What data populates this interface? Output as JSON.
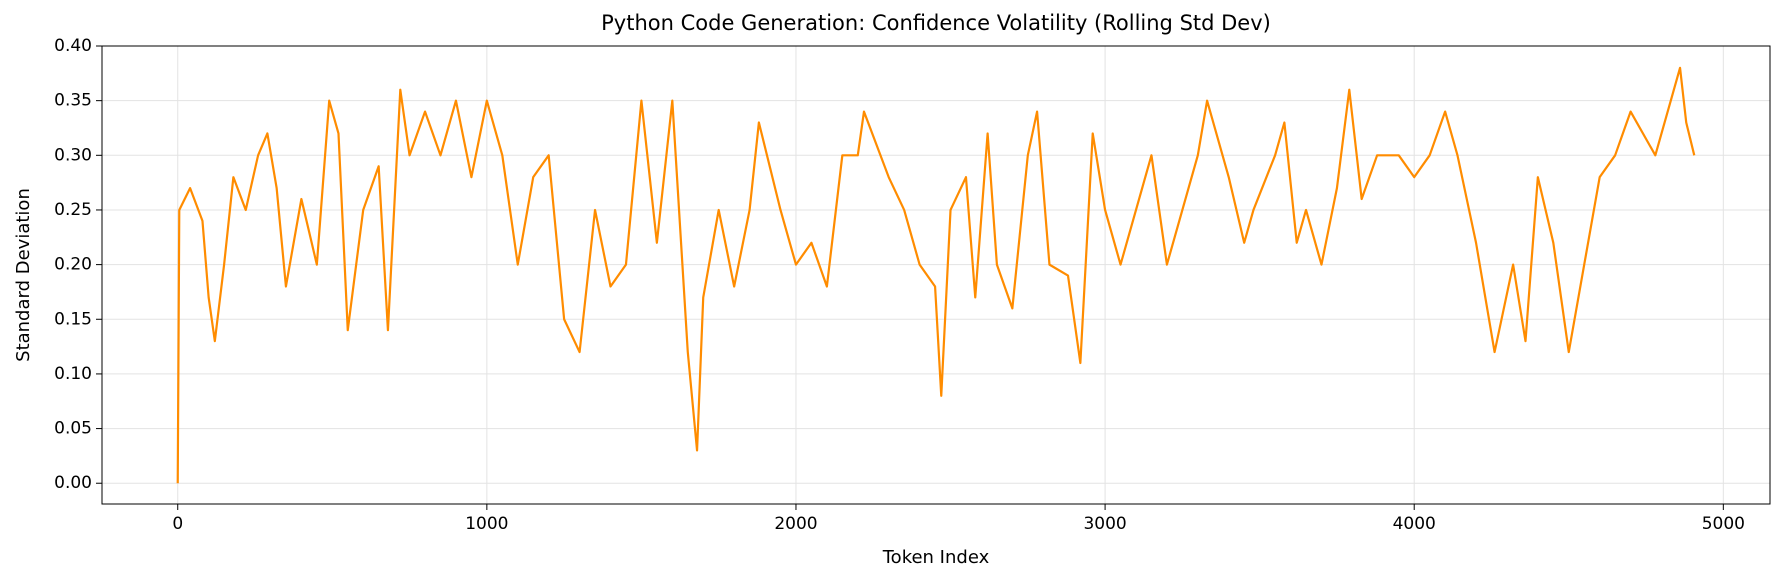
{
  "chart_data": {
    "type": "line",
    "title": "Python Code Generation: Confidence Volatility (Rolling Std Dev)",
    "x_label": "Token Index",
    "y_label": "Standard Deviation",
    "x": [
      0,
      5,
      40,
      80,
      100,
      120,
      150,
      180,
      220,
      260,
      290,
      320,
      350,
      400,
      450,
      490,
      520,
      550,
      600,
      650,
      680,
      720,
      750,
      800,
      850,
      900,
      950,
      1000,
      1050,
      1100,
      1150,
      1200,
      1250,
      1300,
      1350,
      1400,
      1450,
      1500,
      1550,
      1600,
      1650,
      1680,
      1700,
      1750,
      1800,
      1850,
      1880,
      1950,
      2000,
      2050,
      2100,
      2150,
      2200,
      2220,
      2300,
      2350,
      2400,
      2450,
      2470,
      2500,
      2550,
      2580,
      2620,
      2650,
      2700,
      2750,
      2780,
      2820,
      2880,
      2920,
      2960,
      3000,
      3050,
      3100,
      3150,
      3200,
      3250,
      3300,
      3330,
      3400,
      3450,
      3480,
      3550,
      3580,
      3620,
      3650,
      3700,
      3750,
      3790,
      3830,
      3880,
      3950,
      4000,
      4050,
      4100,
      4140,
      4200,
      4260,
      4320,
      4360,
      4400,
      4450,
      4500,
      4550,
      4600,
      4650,
      4700,
      4780,
      4830,
      4860,
      4880,
      4906
    ],
    "series": [
      {
        "color": "#ff8c00",
        "values": [
          0.0,
          0.25,
          0.27,
          0.24,
          0.17,
          0.13,
          0.2,
          0.28,
          0.25,
          0.3,
          0.32,
          0.27,
          0.18,
          0.26,
          0.2,
          0.35,
          0.32,
          0.14,
          0.25,
          0.29,
          0.14,
          0.36,
          0.3,
          0.34,
          0.3,
          0.35,
          0.28,
          0.35,
          0.3,
          0.2,
          0.28,
          0.3,
          0.15,
          0.12,
          0.25,
          0.18,
          0.2,
          0.35,
          0.22,
          0.35,
          0.12,
          0.03,
          0.17,
          0.25,
          0.18,
          0.25,
          0.33,
          0.25,
          0.2,
          0.22,
          0.18,
          0.3,
          0.3,
          0.34,
          0.28,
          0.25,
          0.2,
          0.18,
          0.08,
          0.25,
          0.28,
          0.17,
          0.32,
          0.2,
          0.16,
          0.3,
          0.34,
          0.2,
          0.19,
          0.11,
          0.32,
          0.25,
          0.2,
          0.25,
          0.3,
          0.2,
          0.25,
          0.3,
          0.35,
          0.28,
          0.22,
          0.25,
          0.3,
          0.33,
          0.22,
          0.25,
          0.2,
          0.27,
          0.36,
          0.26,
          0.3,
          0.3,
          0.28,
          0.3,
          0.34,
          0.3,
          0.22,
          0.12,
          0.2,
          0.13,
          0.28,
          0.22,
          0.12,
          0.2,
          0.28,
          0.3,
          0.34,
          0.3,
          0.35,
          0.38,
          0.33,
          0.3
        ]
      }
    ],
    "xlim": [
      -245,
      5151
    ],
    "ylim": [
      -0.019,
      0.4
    ],
    "xticks": [
      0,
      1000,
      2000,
      3000,
      4000,
      5000
    ],
    "yticks": [
      {
        "value": 0,
        "label": "0.00"
      },
      {
        "value": 0.05,
        "label": "0.05"
      },
      {
        "value": 0.1,
        "label": "0.10"
      },
      {
        "value": 0.15,
        "label": "0.15"
      },
      {
        "value": 0.2,
        "label": "0.20"
      },
      {
        "value": 0.25,
        "label": "0.25"
      },
      {
        "value": 0.3,
        "label": "0.30"
      },
      {
        "value": 0.35,
        "label": "0.35"
      },
      {
        "value": 0.4,
        "label": "0.40"
      }
    ],
    "grid": true
  }
}
